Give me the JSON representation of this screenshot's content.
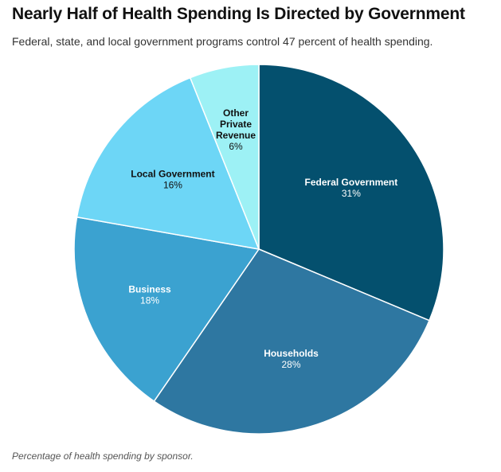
{
  "chart_data": {
    "type": "pie",
    "title": "Nearly Half of Health Spending Is Directed by Government",
    "subtitle": "Federal, state, and local government programs control 47 percent of health spending.",
    "note": "Percentage of health spending by sponsor.",
    "slices": [
      {
        "name": "Federal Government",
        "value": 31,
        "label": "31%",
        "color": "#04506e",
        "text_color": "#ffffff"
      },
      {
        "name": "Households",
        "value": 28,
        "label": "28%",
        "color": "#2e77a1",
        "text_color": "#ffffff"
      },
      {
        "name": "Business",
        "value": 18,
        "label": "18%",
        "color": "#3ba2d0",
        "text_color": "#ffffff"
      },
      {
        "name": "Local Government",
        "value": 16,
        "label": "16%",
        "color": "#6dd6f6",
        "text_color": "#111111"
      },
      {
        "name": "Other Private Revenue",
        "value": 6,
        "label": "6%",
        "color": "#9df1f5",
        "text_color": "#111111"
      }
    ]
  }
}
